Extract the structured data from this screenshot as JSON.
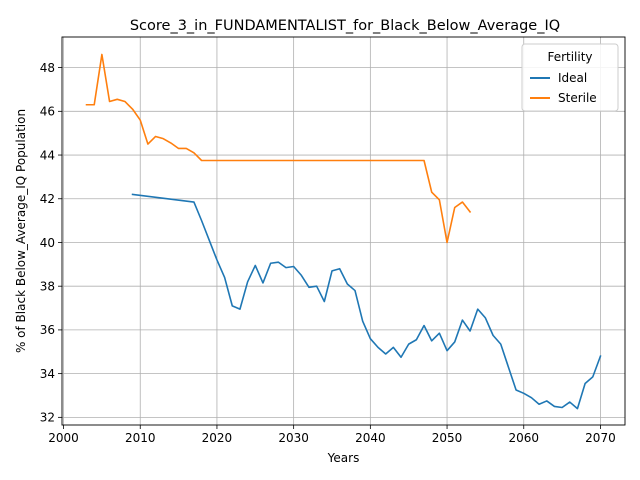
{
  "chart_data": {
    "type": "line",
    "title": "Score_3_in_FUNDAMENTALIST_for_Black_Below_Average_IQ",
    "xlabel": "Years",
    "ylabel": "% of Black Below_Average_IQ Population",
    "xlim": [
      1999.8,
      2073.2
    ],
    "ylim": [
      31.65,
      49.4
    ],
    "xticks": [
      2000,
      2010,
      2020,
      2030,
      2040,
      2050,
      2060,
      2070
    ],
    "yticks": [
      32,
      34,
      36,
      38,
      40,
      42,
      44,
      46,
      48
    ],
    "grid": true,
    "legend": {
      "title": "Fertility",
      "position": "top-right"
    },
    "series": [
      {
        "name": "Ideal",
        "color": "#1f77b4",
        "x": [
          2009,
          2017,
          2018,
          2019,
          2020,
          2021,
          2022,
          2023,
          2024,
          2025,
          2026,
          2027,
          2028,
          2029,
          2030,
          2031,
          2032,
          2033,
          2034,
          2035,
          2036,
          2037,
          2038,
          2039,
          2040,
          2041,
          2042,
          2043,
          2044,
          2045,
          2046,
          2047,
          2048,
          2049,
          2050,
          2051,
          2052,
          2053,
          2054,
          2055,
          2056,
          2057,
          2058,
          2059,
          2060,
          2061,
          2062,
          2063,
          2064,
          2065,
          2066,
          2067,
          2068,
          2069,
          2070
        ],
        "y": [
          42.2,
          41.85,
          41.0,
          40.1,
          39.2,
          38.4,
          37.1,
          36.95,
          38.2,
          38.95,
          38.15,
          39.05,
          39.1,
          38.85,
          38.9,
          38.5,
          37.95,
          38.0,
          37.3,
          38.7,
          38.8,
          38.1,
          37.8,
          36.4,
          35.6,
          35.2,
          34.9,
          35.2,
          34.75,
          35.35,
          35.55,
          36.2,
          35.5,
          35.85,
          35.05,
          35.45,
          36.45,
          35.95,
          36.95,
          36.55,
          35.75,
          35.35,
          34.3,
          33.25,
          33.1,
          32.9,
          32.6,
          32.75,
          32.5,
          32.45,
          32.7,
          32.4,
          33.55,
          33.85,
          34.8
        ]
      },
      {
        "name": "Sterile",
        "color": "#ff7f0e",
        "x": [
          2003,
          2004,
          2005,
          2006,
          2007,
          2008,
          2009,
          2010,
          2011,
          2012,
          2013,
          2014,
          2015,
          2016,
          2017,
          2018,
          2020,
          2030,
          2040,
          2047,
          2048,
          2049,
          2050,
          2051,
          2052,
          2053
        ],
        "y": [
          46.3,
          46.3,
          48.6,
          46.45,
          46.55,
          46.45,
          46.1,
          45.6,
          44.5,
          44.85,
          44.75,
          44.55,
          44.3,
          44.3,
          44.1,
          43.75,
          43.75,
          43.75,
          43.75,
          43.75,
          42.3,
          41.95,
          40.0,
          41.6,
          41.85,
          41.4
        ]
      }
    ]
  }
}
